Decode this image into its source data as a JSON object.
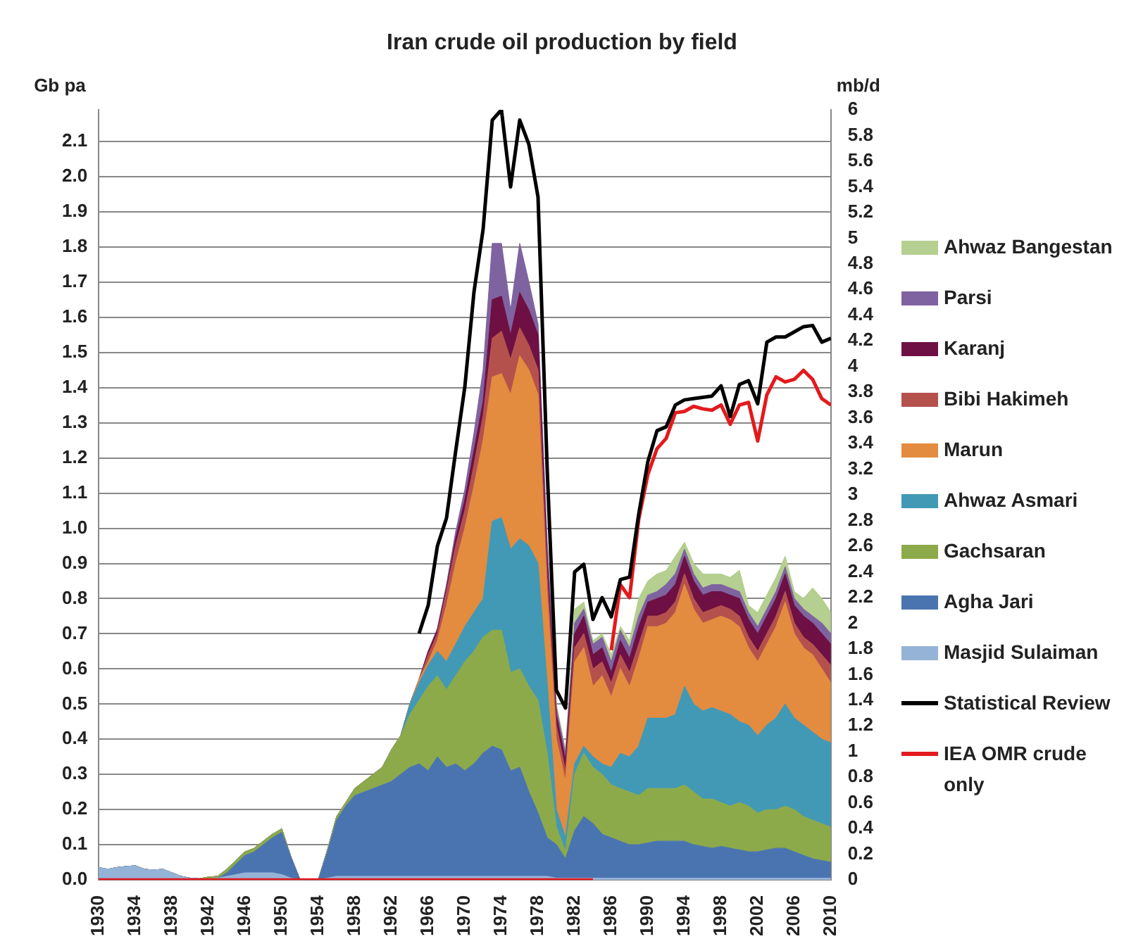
{
  "chart_data": {
    "type": "area",
    "title": "Iran crude oil production by field",
    "ylabel": "Gb pa",
    "y2label": "mb/d",
    "x": [
      1930,
      1931,
      1932,
      1933,
      1934,
      1935,
      1936,
      1937,
      1938,
      1939,
      1940,
      1941,
      1942,
      1943,
      1944,
      1945,
      1946,
      1947,
      1948,
      1949,
      1950,
      1951,
      1952,
      1953,
      1954,
      1955,
      1956,
      1957,
      1958,
      1959,
      1960,
      1961,
      1962,
      1963,
      1964,
      1965,
      1966,
      1967,
      1968,
      1969,
      1970,
      1971,
      1972,
      1973,
      1974,
      1975,
      1976,
      1977,
      1978,
      1979,
      1980,
      1981,
      1982,
      1983,
      1984,
      1985,
      1986,
      1987,
      1988,
      1989,
      1990,
      1991,
      1992,
      1993,
      1994,
      1995,
      1996,
      1997,
      1998,
      1999,
      2000,
      2001,
      2002,
      2003,
      2004,
      2005,
      2006,
      2007,
      2008,
      2009,
      2010
    ],
    "xlim": [
      1930,
      2010
    ],
    "xticks": [
      1930,
      1934,
      1938,
      1942,
      1946,
      1950,
      1954,
      1958,
      1962,
      1966,
      1970,
      1974,
      1978,
      1982,
      1986,
      1990,
      1994,
      1998,
      2002,
      2006,
      2010
    ],
    "ylim": [
      0,
      2.19
    ],
    "yticks": [
      {
        "value": 0,
        "label": "0.0"
      },
      0.1,
      0.2,
      0.3,
      0.4,
      0.5,
      0.6,
      0.7,
      0.8,
      0.9,
      {
        "value": 1,
        "label": "1.0"
      },
      1.1,
      1.2,
      1.3,
      1.4,
      1.5,
      1.6,
      1.7,
      1.8,
      1.9,
      {
        "value": 2,
        "label": "2.0"
      },
      2.1
    ],
    "y2lim": [
      0,
      6
    ],
    "y2ticks": [
      0,
      0.2,
      0.4,
      0.6,
      0.8,
      1,
      1.2,
      1.4,
      1.6,
      1.8,
      2,
      2.2,
      2.4,
      2.6,
      2.8,
      3,
      3.2,
      3.4,
      3.6,
      3.8,
      4,
      4.2,
      4.4,
      4.6,
      4.8,
      5,
      5.2,
      5.4,
      5.6,
      5.8,
      6
    ],
    "stacked": true,
    "grid": "y",
    "legend": "right",
    "marker": "none",
    "series": [
      {
        "name": "Masjid Sulaiman",
        "color": "#95b3d7",
        "values": [
          0.035,
          0.03,
          0.035,
          0.038,
          0.04,
          0.03,
          0.028,
          0.03,
          0.02,
          0.01,
          0.005,
          0.003,
          0.003,
          0.005,
          0.01,
          0.015,
          0.02,
          0.02,
          0.02,
          0.02,
          0.015,
          0.005,
          0,
          0,
          0,
          0.005,
          0.01,
          0.01,
          0.01,
          0.01,
          0.01,
          0.01,
          0.01,
          0.01,
          0.01,
          0.01,
          0.01,
          0.01,
          0.01,
          0.01,
          0.01,
          0.01,
          0.01,
          0.01,
          0.01,
          0.01,
          0.01,
          0.01,
          0.01,
          0.01,
          0.005,
          0.005,
          0.005,
          0.005,
          0.005,
          0.005,
          0.005,
          0.005,
          0.005,
          0.005,
          0.005,
          0.005,
          0.005,
          0.005,
          0.005,
          0.005,
          0.005,
          0.005,
          0.005,
          0.005,
          0.005,
          0.005,
          0.005,
          0.005,
          0.005,
          0.005,
          0.005,
          0.005,
          0.005,
          0.005,
          0.005
        ]
      },
      {
        "name": "Agha Jari",
        "color": "#4a74b0",
        "values": [
          0,
          0,
          0,
          0,
          0,
          0,
          0,
          0,
          0,
          0,
          0,
          0,
          0,
          0,
          0.01,
          0.03,
          0.05,
          0.06,
          0.08,
          0.1,
          0.12,
          0.06,
          0,
          0,
          0,
          0.075,
          0.16,
          0.2,
          0.23,
          0.24,
          0.25,
          0.26,
          0.27,
          0.29,
          0.31,
          0.32,
          0.3,
          0.34,
          0.31,
          0.32,
          0.3,
          0.32,
          0.35,
          0.37,
          0.36,
          0.3,
          0.31,
          0.24,
          0.18,
          0.11,
          0.095,
          0.055,
          0.135,
          0.175,
          0.155,
          0.125,
          0.115,
          0.105,
          0.095,
          0.095,
          0.1,
          0.105,
          0.105,
          0.105,
          0.105,
          0.095,
          0.09,
          0.085,
          0.09,
          0.085,
          0.08,
          0.075,
          0.075,
          0.08,
          0.085,
          0.085,
          0.075,
          0.065,
          0.055,
          0.05,
          0.045
        ]
      },
      {
        "name": "Gachsaran",
        "color": "#8caa4a",
        "values": [
          0,
          0,
          0,
          0,
          0,
          0,
          0,
          0,
          0,
          0,
          0,
          0,
          0.005,
          0.005,
          0.01,
          0.01,
          0.01,
          0.01,
          0.01,
          0.01,
          0.01,
          0,
          0,
          0,
          0,
          0.005,
          0.01,
          0.01,
          0.02,
          0.03,
          0.04,
          0.05,
          0.09,
          0.11,
          0.15,
          0.18,
          0.24,
          0.23,
          0.22,
          0.25,
          0.31,
          0.32,
          0.33,
          0.33,
          0.34,
          0.28,
          0.28,
          0.3,
          0.32,
          0.24,
          0.05,
          0.02,
          0.16,
          0.18,
          0.16,
          0.17,
          0.15,
          0.15,
          0.15,
          0.14,
          0.155,
          0.15,
          0.15,
          0.15,
          0.16,
          0.15,
          0.135,
          0.14,
          0.125,
          0.12,
          0.135,
          0.13,
          0.11,
          0.115,
          0.11,
          0.12,
          0.12,
          0.11,
          0.11,
          0.105,
          0.1
        ]
      },
      {
        "name": "Ahwaz Asmari",
        "color": "#4199b5",
        "values": [
          0,
          0,
          0,
          0,
          0,
          0,
          0,
          0,
          0,
          0,
          0,
          0,
          0,
          0,
          0,
          0,
          0,
          0,
          0,
          0,
          0,
          0,
          0,
          0,
          0,
          0,
          0,
          0,
          0,
          0,
          0,
          0,
          0,
          0,
          0.03,
          0.05,
          0.06,
          0.07,
          0.08,
          0.09,
          0.1,
          0.11,
          0.11,
          0.31,
          0.32,
          0.35,
          0.37,
          0.4,
          0.39,
          0.2,
          0.05,
          0.04,
          0.03,
          0.02,
          0.03,
          0.03,
          0.05,
          0.1,
          0.1,
          0.14,
          0.2,
          0.2,
          0.2,
          0.21,
          0.28,
          0.25,
          0.25,
          0.26,
          0.26,
          0.26,
          0.23,
          0.23,
          0.22,
          0.24,
          0.26,
          0.29,
          0.26,
          0.26,
          0.25,
          0.24,
          0.24
        ]
      },
      {
        "name": "Marun",
        "color": "#e38b3f",
        "values": [
          0,
          0,
          0,
          0,
          0,
          0,
          0,
          0,
          0,
          0,
          0,
          0,
          0,
          0,
          0,
          0,
          0,
          0,
          0,
          0,
          0,
          0,
          0,
          0,
          0,
          0,
          0,
          0,
          0,
          0,
          0,
          0,
          0,
          0,
          0,
          0.01,
          0.01,
          0.03,
          0.16,
          0.23,
          0.28,
          0.36,
          0.45,
          0.41,
          0.41,
          0.44,
          0.52,
          0.5,
          0.48,
          0.25,
          0.2,
          0.16,
          0.29,
          0.28,
          0.2,
          0.25,
          0.2,
          0.24,
          0.2,
          0.25,
          0.26,
          0.26,
          0.27,
          0.29,
          0.29,
          0.27,
          0.25,
          0.25,
          0.27,
          0.27,
          0.27,
          0.22,
          0.21,
          0.23,
          0.26,
          0.29,
          0.24,
          0.22,
          0.22,
          0.2,
          0.17
        ]
      },
      {
        "name": "Bibi Hakimeh",
        "color": "#b5514d",
        "values": [
          0,
          0,
          0,
          0,
          0,
          0,
          0,
          0,
          0,
          0,
          0,
          0,
          0,
          0,
          0,
          0,
          0,
          0,
          0,
          0,
          0,
          0,
          0,
          0,
          0,
          0,
          0,
          0,
          0,
          0,
          0,
          0,
          0,
          0,
          0,
          0,
          0.02,
          0.02,
          0.04,
          0.05,
          0.05,
          0.06,
          0.07,
          0.11,
          0.12,
          0.1,
          0.08,
          0.07,
          0.07,
          0.05,
          0.04,
          0.03,
          0.04,
          0.04,
          0.05,
          0.04,
          0.04,
          0.04,
          0.04,
          0.04,
          0.03,
          0.03,
          0.03,
          0.03,
          0.03,
          0.03,
          0.03,
          0.03,
          0.03,
          0.03,
          0.03,
          0.03,
          0.03,
          0.03,
          0.03,
          0.03,
          0.03,
          0.03,
          0.03,
          0.04,
          0.05
        ]
      },
      {
        "name": "Karanj",
        "color": "#6e1043",
        "values": [
          0,
          0,
          0,
          0,
          0,
          0,
          0,
          0,
          0,
          0,
          0,
          0,
          0,
          0,
          0,
          0,
          0,
          0,
          0,
          0,
          0,
          0,
          0,
          0,
          0,
          0,
          0,
          0,
          0,
          0,
          0,
          0,
          0,
          0,
          0,
          0,
          0.01,
          0.01,
          0.01,
          0.02,
          0.03,
          0.04,
          0.04,
          0.11,
          0.1,
          0.07,
          0.1,
          0.1,
          0.1,
          0.05,
          0.03,
          0.03,
          0.04,
          0.05,
          0.04,
          0.04,
          0.03,
          0.04,
          0.04,
          0.05,
          0.04,
          0.05,
          0.05,
          0.05,
          0.05,
          0.05,
          0.05,
          0.05,
          0.04,
          0.04,
          0.05,
          0.05,
          0.05,
          0.05,
          0.05,
          0.05,
          0.05,
          0.06,
          0.06,
          0.06,
          0.06
        ]
      },
      {
        "name": "Parsi",
        "color": "#7f63a0",
        "values": [
          0,
          0,
          0,
          0,
          0,
          0,
          0,
          0,
          0,
          0,
          0,
          0,
          0,
          0,
          0,
          0,
          0,
          0,
          0,
          0,
          0,
          0,
          0,
          0,
          0,
          0,
          0,
          0,
          0,
          0,
          0,
          0,
          0,
          0,
          0,
          0,
          0,
          0.005,
          0.01,
          0.02,
          0.03,
          0.05,
          0.09,
          0.16,
          0.15,
          0.07,
          0.14,
          0.08,
          0.03,
          0.05,
          0.02,
          0.02,
          0.03,
          0.02,
          0.03,
          0.03,
          0.03,
          0.03,
          0.03,
          0.03,
          0.02,
          0.02,
          0.03,
          0.03,
          0.02,
          0.02,
          0.02,
          0.02,
          0.02,
          0.02,
          0.02,
          0.02,
          0.02,
          0.02,
          0.02,
          0.02,
          0.02,
          0.02,
          0.02,
          0.03,
          0.03
        ]
      },
      {
        "name": "Ahwaz Bangestan",
        "color": "#b4cf8f",
        "values": [
          null,
          null,
          null,
          null,
          null,
          null,
          null,
          null,
          null,
          null,
          null,
          null,
          null,
          null,
          null,
          null,
          null,
          null,
          null,
          null,
          null,
          null,
          null,
          null,
          null,
          null,
          null,
          null,
          null,
          null,
          null,
          null,
          null,
          null,
          null,
          null,
          null,
          null,
          null,
          null,
          null,
          null,
          null,
          null,
          null,
          null,
          null,
          null,
          null,
          0,
          0.01,
          0.01,
          0.04,
          0.02,
          0.01,
          0.01,
          0.02,
          0.01,
          0.02,
          0.05,
          0.04,
          0.05,
          0.04,
          0.05,
          0.02,
          0.03,
          0.04,
          0.03,
          0.03,
          0.03,
          0.06,
          0.02,
          0.04,
          0.04,
          0.04,
          0.03,
          0.02,
          0.03,
          0.08,
          0.07,
          0.06
        ]
      },
      {
        "name": "Statistical Review",
        "type": "line",
        "axis": "y2",
        "color": "#000000",
        "values": [
          null,
          null,
          null,
          null,
          null,
          null,
          null,
          null,
          null,
          null,
          null,
          null,
          null,
          null,
          null,
          null,
          null,
          null,
          null,
          null,
          null,
          null,
          null,
          null,
          null,
          null,
          null,
          null,
          null,
          null,
          null,
          null,
          null,
          null,
          null,
          1.92,
          2.14,
          2.6,
          2.82,
          3.34,
          3.84,
          4.58,
          5.07,
          5.92,
          6.0,
          5.4,
          5.92,
          5.73,
          5.32,
          3.2,
          1.48,
          1.34,
          2.4,
          2.46,
          2.03,
          2.2,
          2.05,
          2.34,
          2.36,
          2.85,
          3.26,
          3.5,
          3.53,
          3.7,
          3.74,
          3.75,
          3.76,
          3.77,
          3.85,
          3.61,
          3.86,
          3.89,
          3.71,
          4.19,
          4.23,
          4.23,
          4.27,
          4.31,
          4.32,
          4.19,
          4.22
        ]
      },
      {
        "name": "IEA OMR crude only",
        "type": "line",
        "axis": "y2",
        "color": "#e31a1c",
        "values": [
          0,
          0,
          0,
          0,
          0,
          0,
          0,
          0,
          0,
          0,
          0,
          0,
          0,
          0,
          0,
          0,
          0,
          0,
          0,
          0,
          0,
          0,
          0,
          0,
          0,
          0,
          0,
          0,
          0,
          0,
          0,
          0,
          0,
          0,
          0,
          0,
          0,
          0,
          0,
          0,
          0,
          0,
          0,
          0,
          0,
          0,
          0,
          0,
          0,
          0,
          0,
          0,
          0,
          0,
          0,
          null,
          1.79,
          2.3,
          2.2,
          2.81,
          3.16,
          3.36,
          3.44,
          3.64,
          3.65,
          3.69,
          3.67,
          3.66,
          3.7,
          3.55,
          3.7,
          3.72,
          3.42,
          3.78,
          3.92,
          3.88,
          3.9,
          3.97,
          3.9,
          3.75,
          3.7
        ]
      }
    ]
  }
}
